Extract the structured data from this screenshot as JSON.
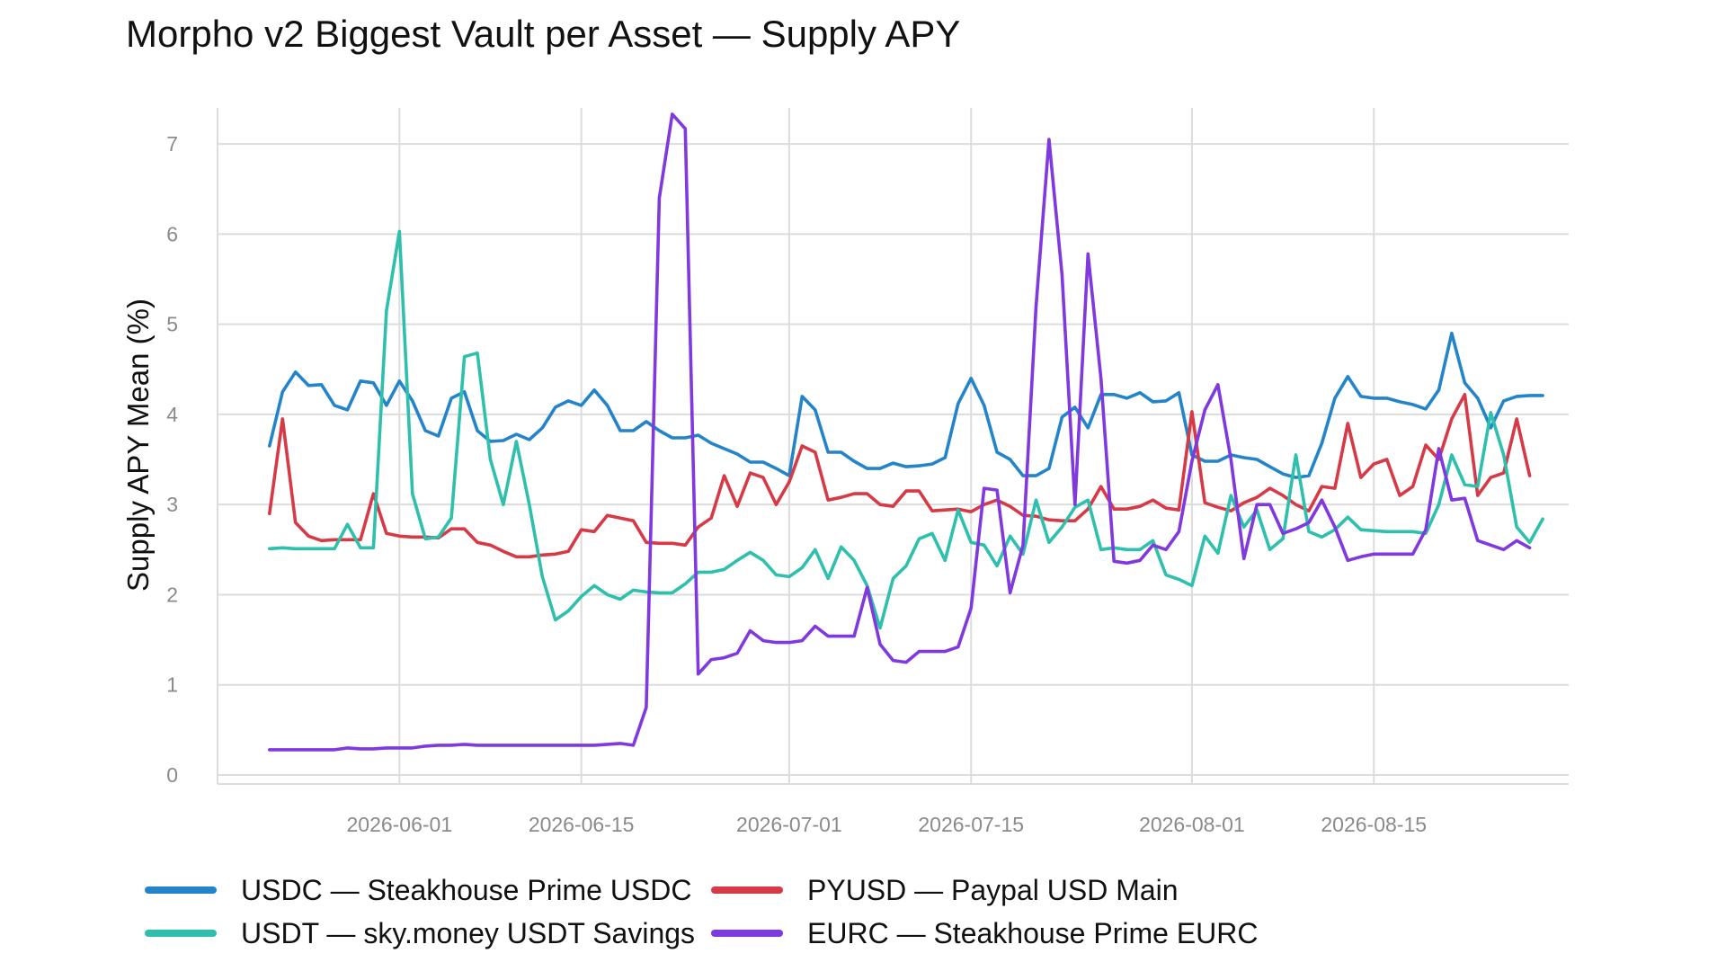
{
  "chart_data": {
    "type": "line",
    "title": "Morpho v2 Biggest Vault per Asset — Supply APY",
    "xlabel": "",
    "ylabel": "Supply APY Mean (%)",
    "x_axis": {
      "type": "date",
      "range": [
        "2026-05-18",
        "2026-08-30"
      ],
      "ticks": [
        "2026-06-01",
        "2026-06-15",
        "2026-07-01",
        "2026-07-15",
        "2026-08-01",
        "2026-08-15"
      ]
    },
    "ylim": [
      -0.1,
      7.4
    ],
    "y_ticks": [
      0,
      1,
      2,
      3,
      4,
      5,
      6,
      7
    ],
    "grid": true,
    "legend": "bottom",
    "x_start": "2026-05-22",
    "x_step_days": 1,
    "series": [
      {
        "name": "USDC — Steakhouse Prime USDC",
        "color": "#2484c9",
        "values": [
          3.65,
          4.25,
          4.47,
          4.32,
          4.33,
          4.1,
          4.05,
          4.37,
          4.35,
          4.1,
          4.37,
          4.15,
          3.82,
          3.76,
          4.18,
          4.25,
          3.82,
          3.7,
          3.71,
          3.78,
          3.72,
          3.85,
          4.08,
          4.15,
          4.1,
          4.27,
          4.1,
          3.82,
          3.82,
          3.92,
          3.82,
          3.74,
          3.74,
          3.77,
          3.68,
          3.62,
          3.56,
          3.47,
          3.47,
          3.4,
          3.32,
          4.2,
          4.05,
          3.58,
          3.58,
          3.48,
          3.4,
          3.4,
          3.46,
          3.42,
          3.43,
          3.45,
          3.52,
          4.12,
          4.4,
          4.1,
          3.58,
          3.5,
          3.32,
          3.32,
          3.4,
          3.97,
          4.08,
          3.85,
          4.22,
          4.22,
          4.18,
          4.24,
          4.14,
          4.15,
          4.24,
          3.55,
          3.48,
          3.48,
          3.55,
          3.52,
          3.5,
          3.42,
          3.34,
          3.3,
          3.32,
          3.68,
          4.18,
          4.42,
          4.2,
          4.18,
          4.18,
          4.14,
          4.11,
          4.06,
          4.27,
          4.9,
          4.35,
          4.18,
          3.85,
          4.15,
          4.2,
          4.21,
          4.21
        ]
      },
      {
        "name": "PYUSD — Paypal USD Main",
        "color": "#d63a47",
        "values": [
          2.9,
          3.95,
          2.8,
          2.65,
          2.6,
          2.61,
          2.61,
          2.61,
          3.12,
          2.68,
          2.65,
          2.64,
          2.64,
          2.63,
          2.73,
          2.73,
          2.58,
          2.55,
          2.48,
          2.42,
          2.42,
          2.44,
          2.45,
          2.48,
          2.72,
          2.7,
          2.88,
          2.85,
          2.82,
          2.58,
          2.57,
          2.57,
          2.55,
          2.75,
          2.85,
          3.32,
          2.98,
          3.35,
          3.3,
          3.0,
          3.25,
          3.65,
          3.58,
          3.05,
          3.08,
          3.12,
          3.12,
          3.0,
          2.98,
          3.15,
          3.15,
          2.93,
          2.94,
          2.95,
          2.92,
          3.0,
          3.05,
          2.98,
          2.88,
          2.87,
          2.83,
          2.82,
          2.82,
          2.95,
          3.2,
          2.95,
          2.95,
          2.98,
          3.05,
          2.96,
          2.94,
          4.03,
          3.02,
          2.97,
          2.93,
          3.02,
          3.08,
          3.18,
          3.1,
          3.0,
          2.93,
          3.2,
          3.18,
          3.9,
          3.3,
          3.45,
          3.5,
          3.1,
          3.2,
          3.66,
          3.5,
          3.95,
          4.22,
          3.1,
          3.3,
          3.35,
          3.95,
          3.32
        ]
      },
      {
        "name": "USDT — sky.money USDT Savings",
        "color": "#2ebfad",
        "values": [
          2.51,
          2.52,
          2.51,
          2.51,
          2.51,
          2.51,
          2.78,
          2.52,
          2.52,
          5.15,
          6.03,
          3.12,
          2.62,
          2.64,
          2.85,
          4.64,
          4.68,
          3.5,
          3.0,
          3.7,
          3.0,
          2.2,
          1.72,
          1.82,
          1.98,
          2.1,
          2.0,
          1.95,
          2.05,
          2.03,
          2.02,
          2.02,
          2.12,
          2.25,
          2.25,
          2.28,
          2.38,
          2.47,
          2.38,
          2.22,
          2.2,
          2.3,
          2.5,
          2.18,
          2.53,
          2.38,
          2.1,
          1.63,
          2.18,
          2.32,
          2.62,
          2.68,
          2.38,
          2.94,
          2.58,
          2.55,
          2.32,
          2.65,
          2.45,
          3.05,
          2.58,
          2.75,
          2.97,
          3.05,
          2.5,
          2.52,
          2.5,
          2.5,
          2.6,
          2.22,
          2.17,
          2.1,
          2.65,
          2.46,
          3.1,
          2.75,
          2.94,
          2.5,
          2.62,
          3.55,
          2.7,
          2.64,
          2.72,
          2.86,
          2.72,
          2.71,
          2.7,
          2.7,
          2.7,
          2.68,
          3.0,
          3.55,
          3.22,
          3.2,
          4.02,
          3.55,
          2.75,
          2.58,
          2.84
        ]
      },
      {
        "name": "EURC — Steakhouse Prime EURC",
        "color": "#8038df",
        "values": [
          0.28,
          0.28,
          0.28,
          0.28,
          0.28,
          0.28,
          0.3,
          0.29,
          0.29,
          0.3,
          0.3,
          0.3,
          0.32,
          0.33,
          0.33,
          0.34,
          0.33,
          0.33,
          0.33,
          0.33,
          0.33,
          0.33,
          0.33,
          0.33,
          0.33,
          0.33,
          0.34,
          0.35,
          0.33,
          0.75,
          6.4,
          7.33,
          7.17,
          1.12,
          1.28,
          1.3,
          1.35,
          1.6,
          1.49,
          1.47,
          1.47,
          1.49,
          1.65,
          1.54,
          1.54,
          1.54,
          2.08,
          1.45,
          1.27,
          1.25,
          1.37,
          1.37,
          1.37,
          1.42,
          1.85,
          3.18,
          3.16,
          2.02,
          2.55,
          5.2,
          7.05,
          5.55,
          3.0,
          5.78,
          4.4,
          2.37,
          2.35,
          2.38,
          2.55,
          2.5,
          2.7,
          3.48,
          4.05,
          4.33,
          3.5,
          2.4,
          3.0,
          3.0,
          2.68,
          2.73,
          2.8,
          3.05,
          2.75,
          2.38,
          2.42,
          2.45,
          2.45,
          2.45,
          2.45,
          2.72,
          3.62,
          3.05,
          3.07,
          2.6,
          2.55,
          2.5,
          2.6,
          2.52
        ]
      }
    ],
    "legend_layout": [
      [
        0,
        1
      ],
      [
        2,
        3
      ]
    ]
  }
}
